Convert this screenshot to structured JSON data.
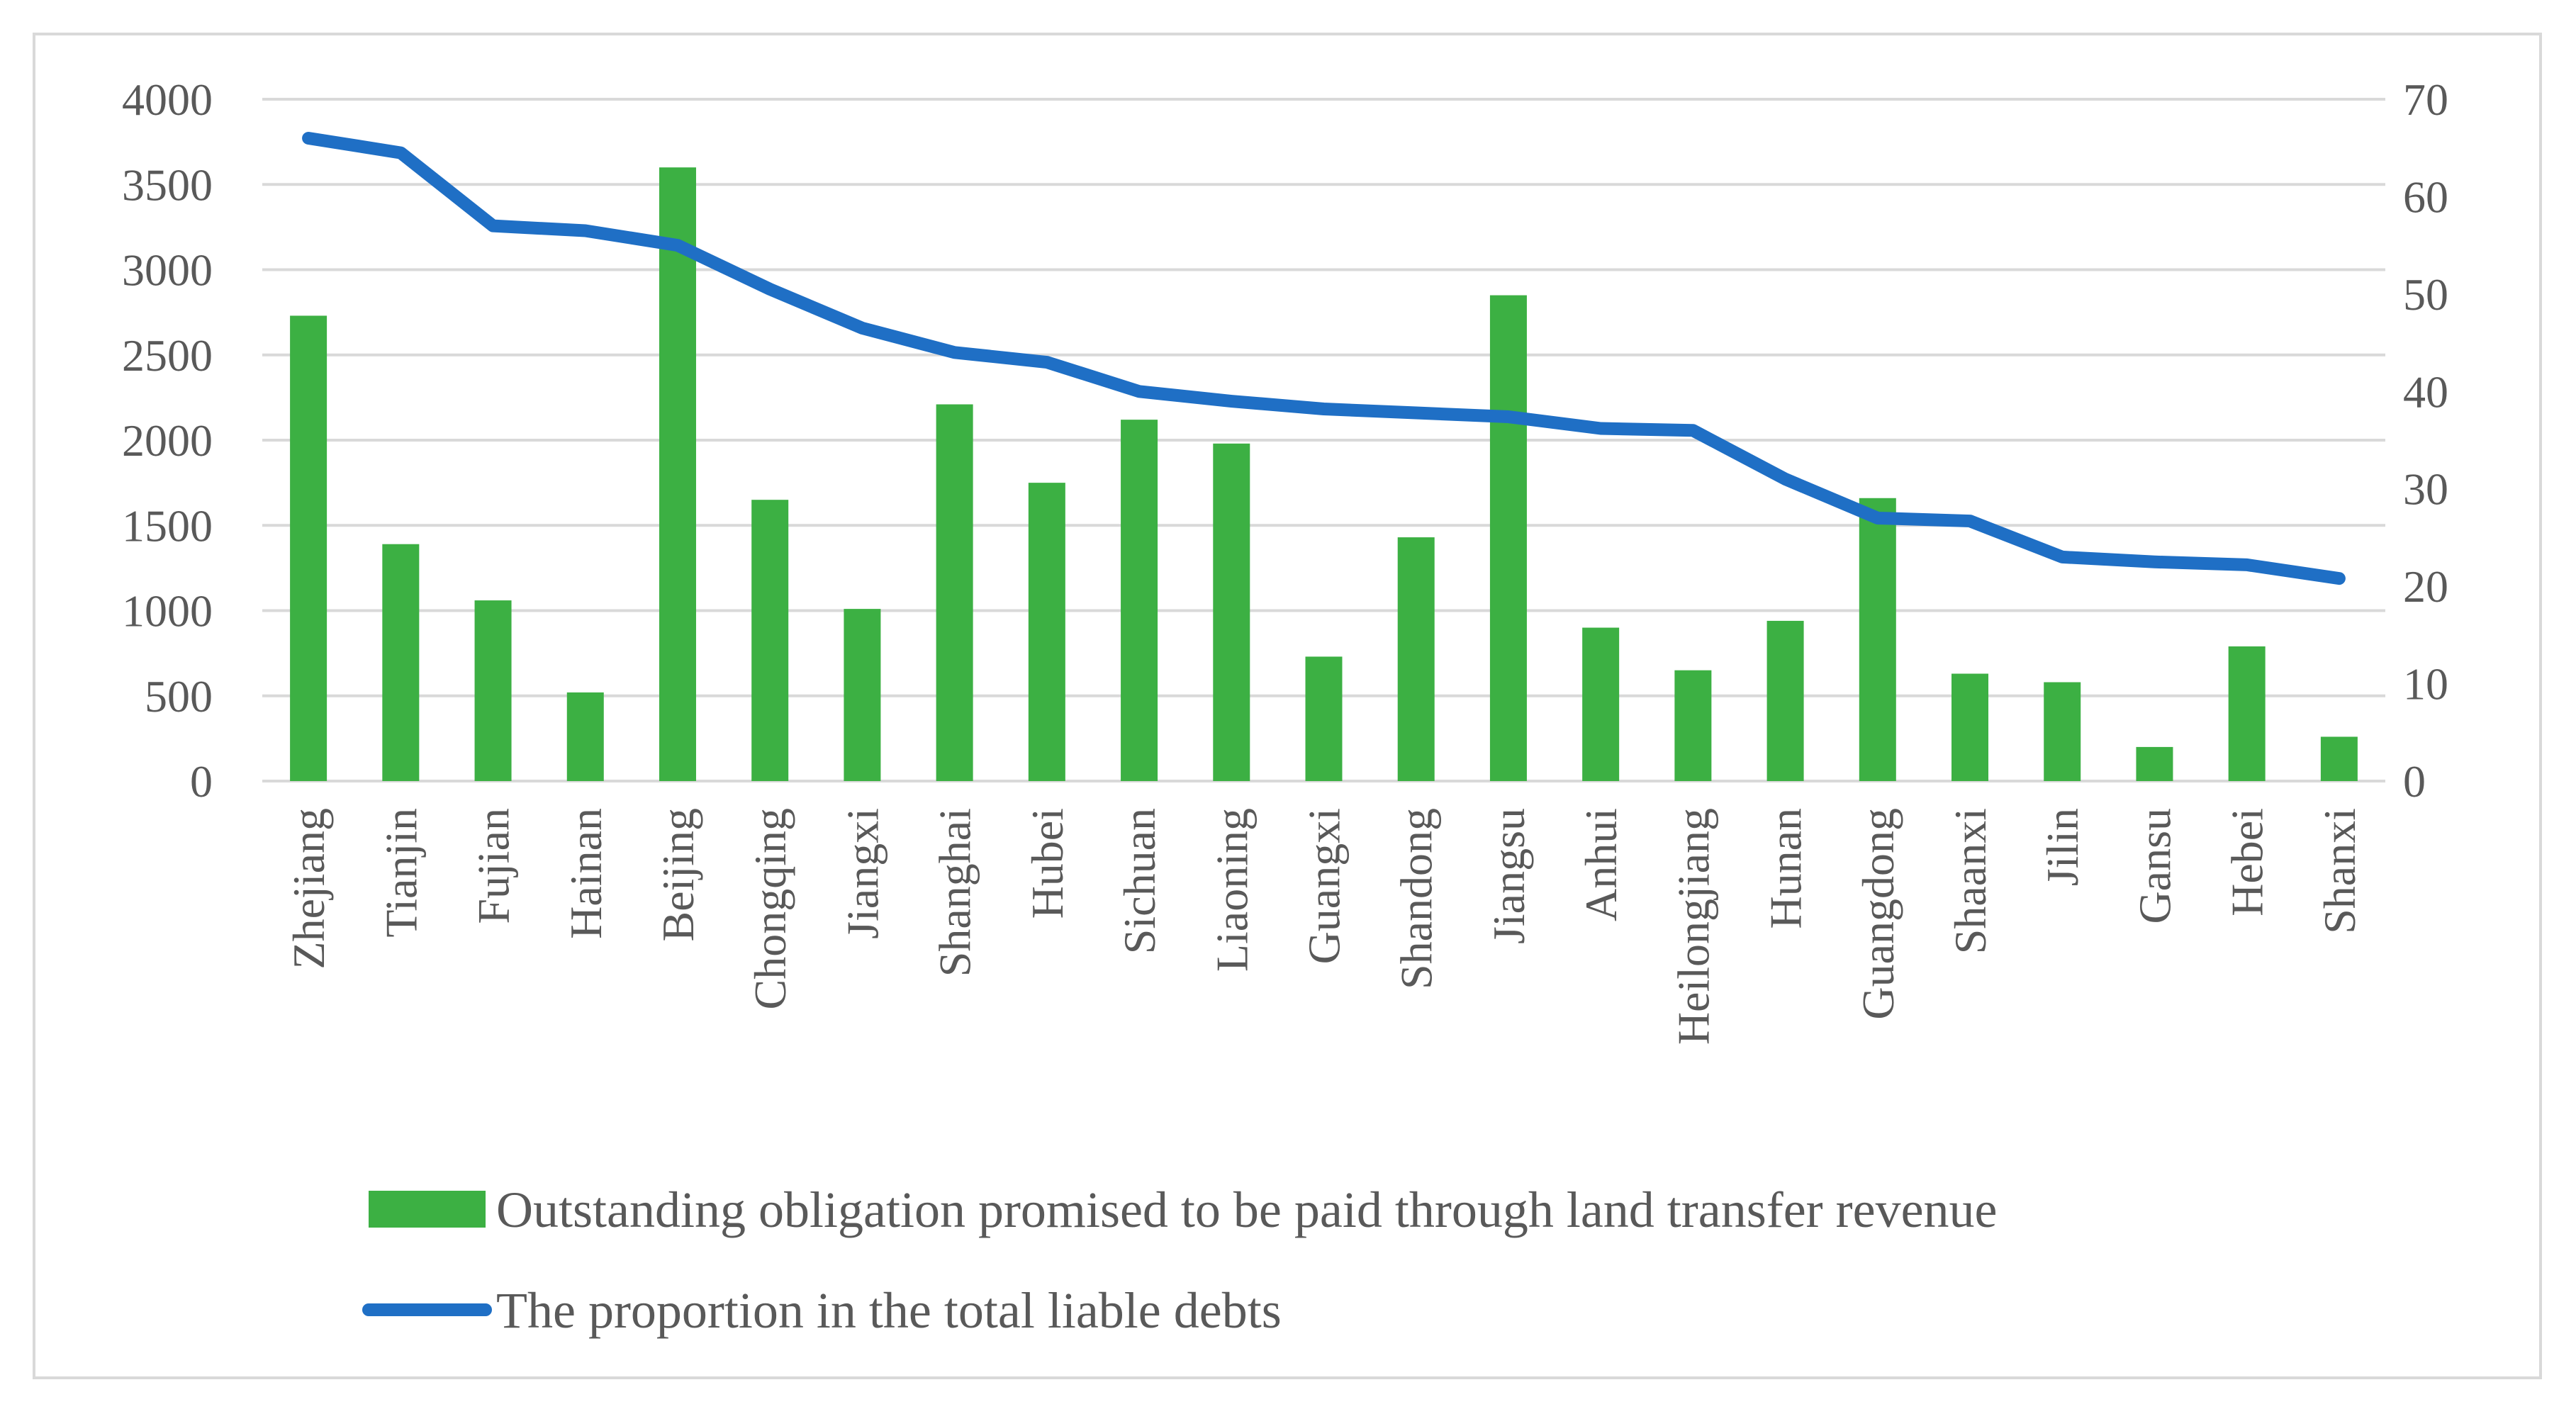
{
  "chart_data": {
    "type": "bar",
    "title": "",
    "xlabel": "",
    "ylabel": "",
    "categories": [
      "Zhejiang",
      "Tianjin",
      "Fujian",
      "Hainan",
      "Beijing",
      "Chongqing",
      "Jiangxi",
      "Shanghai",
      "Hubei",
      "Sichuan",
      "Liaoning",
      "Guangxi",
      "Shandong",
      "Jiangsu",
      "Anhui",
      "Heilongjiang",
      "Hunan",
      "Guangdong",
      "Shaanxi",
      "Jilin",
      "Gansu",
      "Hebei",
      "Shanxi"
    ],
    "series": [
      {
        "name": "Outstanding obligation promised to be paid through land transfer revenue",
        "type": "bar",
        "axis": "left",
        "color": "#3cb043",
        "values": [
          2730,
          1390,
          1060,
          520,
          3600,
          1650,
          1010,
          2210,
          1750,
          2120,
          1980,
          730,
          1430,
          2850,
          900,
          650,
          940,
          1660,
          630,
          580,
          200,
          790,
          260
        ]
      },
      {
        "name": "The proportion in the total liable debts",
        "type": "line",
        "axis": "right",
        "color": "#1f6fc5",
        "values": [
          66,
          64.5,
          57,
          56.5,
          55,
          50.5,
          46.5,
          44,
          43,
          40,
          39,
          38.2,
          37.8,
          37.4,
          36.2,
          36,
          31,
          27,
          26.7,
          23,
          22.5,
          22.2,
          20.8
        ]
      }
    ],
    "y_left": {
      "min": 0,
      "max": 4000,
      "ticks": [
        0,
        500,
        1000,
        1500,
        2000,
        2500,
        3000,
        3500,
        4000
      ]
    },
    "y_right": {
      "min": 0,
      "max": 70,
      "ticks": [
        0,
        10,
        20,
        30,
        40,
        50,
        60,
        70
      ]
    },
    "grid": true,
    "legend_position": "bottom"
  }
}
